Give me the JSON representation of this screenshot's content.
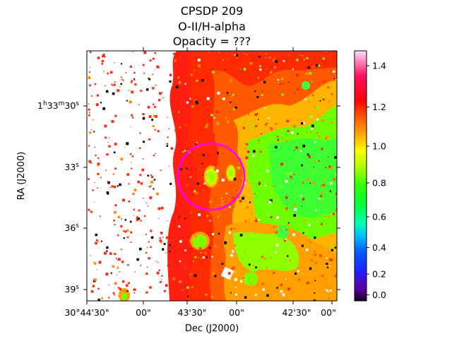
{
  "chart_data": {
    "type": "heatmap",
    "title": "CPSDP 209",
    "subtitle": "O-II/H-alpha",
    "subtitle2": "Opacity = ???",
    "xlabel": "Dec (J2000)",
    "ylabel": "RA (J2000)",
    "x_ticks": [
      "30°44'30\"",
      "00\"",
      "43'30\"",
      "00\"",
      "42'30\"",
      "00\""
    ],
    "y_ticks": [
      {
        "h": "1",
        "m": "33",
        "s": "30"
      },
      {
        "h": "",
        "m": "",
        "s": "33"
      },
      {
        "h": "",
        "m": "",
        "s": "36"
      },
      {
        "h": "",
        "m": "",
        "s": "39"
      }
    ],
    "colorbar": {
      "colormap": "gist_rainbow-like",
      "range": [
        -0.1,
        1.47
      ],
      "ticks": [
        0.0,
        0.2,
        0.4,
        0.6,
        0.8,
        1.0,
        1.2,
        1.4
      ],
      "tick_labels": [
        "0.0",
        "0.2",
        "0.4",
        "0.6",
        "0.8",
        "1.0",
        "1.2",
        "1.4"
      ]
    },
    "marker": {
      "shape": "circle",
      "color": "#ff00ff"
    }
  }
}
